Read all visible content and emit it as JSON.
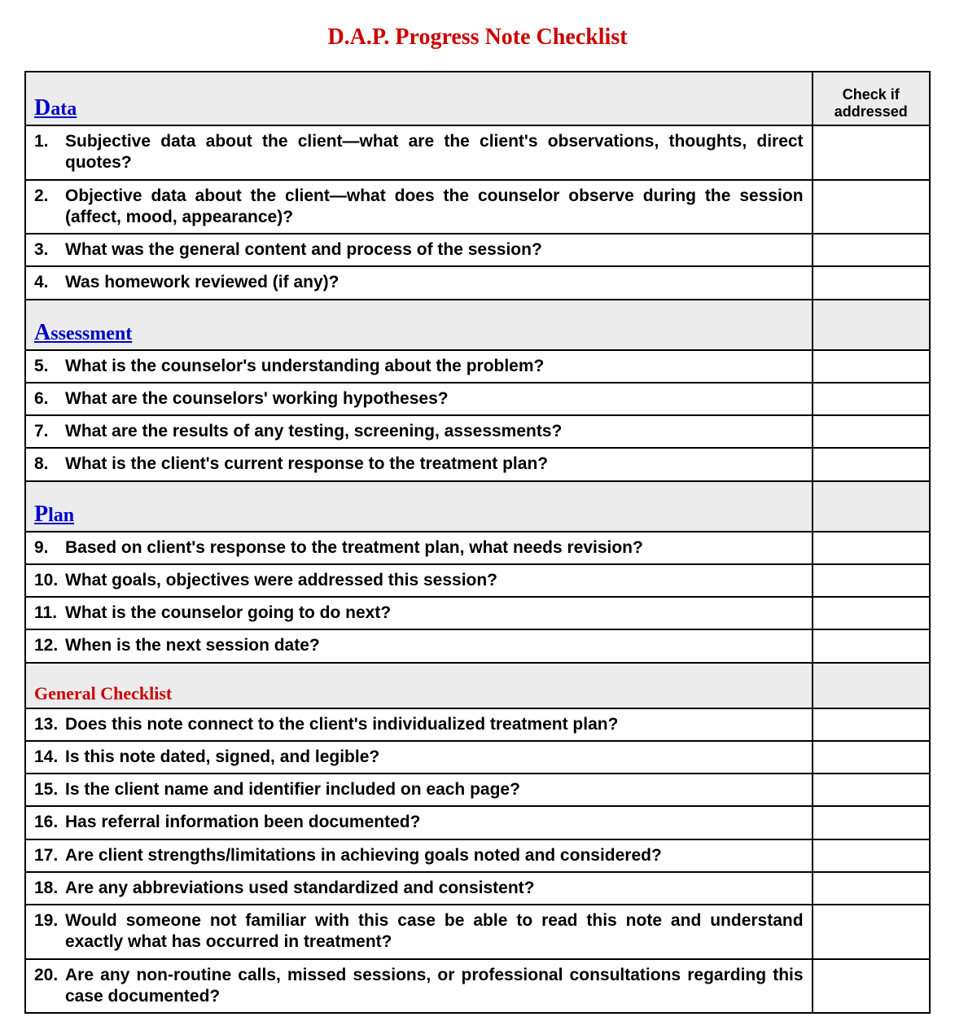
{
  "title": "D.A.P. Progress Note Checklist",
  "check_header": "Check if addressed",
  "colors": {
    "title": "#cc0000",
    "section_blue": "#0000cc",
    "section_red": "#cc0000",
    "header_bg": "#ececec",
    "border": "#000000",
    "text": "#000000",
    "bg": "#ffffff"
  },
  "sections": [
    {
      "key": "data",
      "label_first": "D",
      "label_rest": "ata",
      "style": "blue",
      "items": [
        {
          "num": "1.",
          "text": "Subjective data about the client—what are the client's observations, thoughts, direct quotes?",
          "justify": true
        },
        {
          "num": "2.",
          "text": "Objective data about the client—what does the counselor observe during the session (affect, mood, appearance)?",
          "justify": true
        },
        {
          "num": "3.",
          "text": "What was the general content and process of the session?",
          "justify": false
        },
        {
          "num": "4.",
          "text": "Was homework reviewed (if any)?",
          "justify": false
        }
      ]
    },
    {
      "key": "assessment",
      "label_first": "A",
      "label_rest": "ssessment",
      "style": "blue",
      "items": [
        {
          "num": "5.",
          "text": "What is the counselor's understanding about the problem?",
          "justify": false
        },
        {
          "num": "6.",
          "text": "What are the counselors' working hypotheses?",
          "justify": false
        },
        {
          "num": "7.",
          "text": "What are the results of any testing, screening, assessments?",
          "justify": false
        },
        {
          "num": "8.",
          "text": "What is the client's current response to the treatment plan?",
          "justify": false
        }
      ]
    },
    {
      "key": "plan",
      "label_first": "P",
      "label_rest": "lan",
      "style": "blue",
      "items": [
        {
          "num": "9.",
          "text": "Based on client's response to the treatment plan, what needs revision?",
          "justify": false
        },
        {
          "num": "10.",
          "text": "What goals, objectives were addressed this session?",
          "justify": false
        },
        {
          "num": "11.",
          "text": "What is the counselor going to do next?",
          "justify": false
        },
        {
          "num": "12.",
          "text": "When is the next session date?",
          "justify": false
        }
      ]
    },
    {
      "key": "general",
      "label_full": "General Checklist",
      "style": "red",
      "items": [
        {
          "num": "13.",
          "text": "Does this note connect to the client's individualized treatment plan?",
          "justify": false
        },
        {
          "num": "14.",
          "text": "Is this note dated, signed, and legible?",
          "justify": false
        },
        {
          "num": "15.",
          "text": "Is the client name and identifier included on each page?",
          "justify": false
        },
        {
          "num": "16.",
          "text": "Has referral information been documented?",
          "justify": false
        },
        {
          "num": "17.",
          "text": "Are client strengths/limitations in achieving goals noted and considered?",
          "justify": false
        },
        {
          "num": "18.",
          "text": "Are any abbreviations used standardized and consistent?",
          "justify": false
        },
        {
          "num": "19.",
          "text": "Would someone not familiar with this case be able to read this note and understand exactly what has occurred in treatment?",
          "justify": true
        },
        {
          "num": "20.",
          "text": "Are any non-routine calls, missed sessions, or professional consultations regarding this case documented?",
          "justify": true
        }
      ]
    }
  ]
}
